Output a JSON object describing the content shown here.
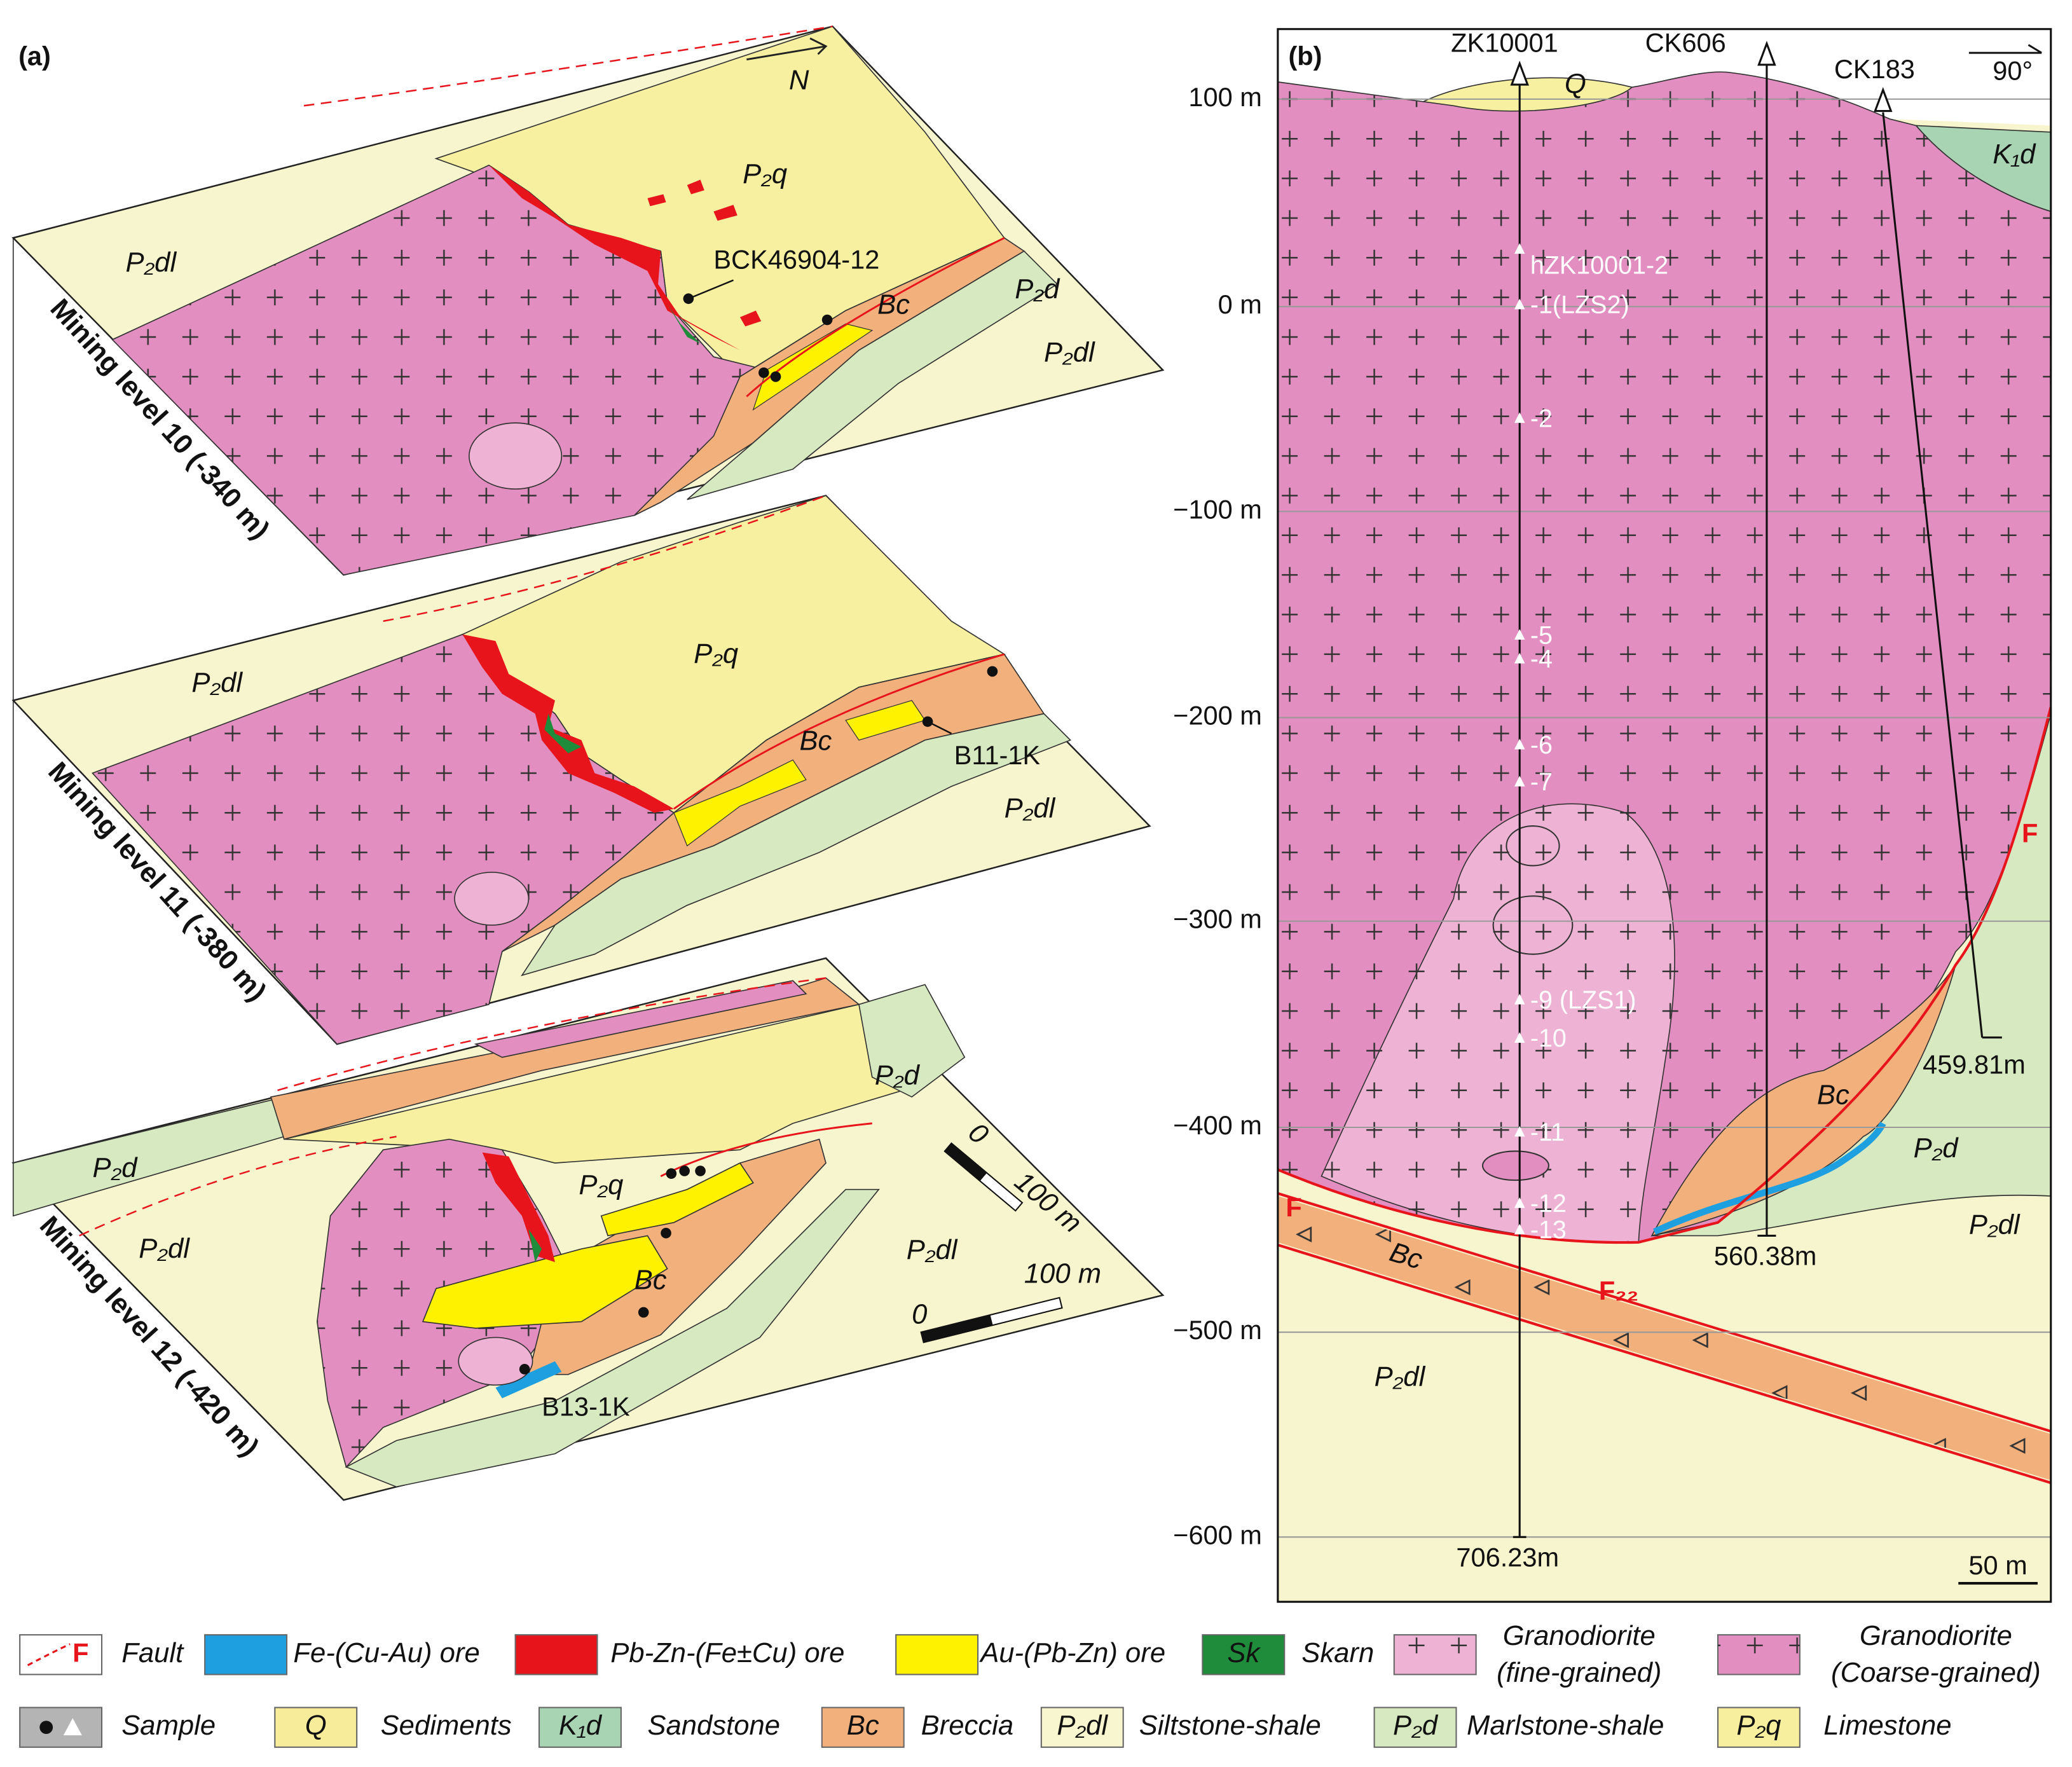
{
  "panel_a": {
    "label": "(a)",
    "north": "N",
    "levels": [
      {
        "name": "Mining level 10 (-340 m)",
        "units": [
          "P₂dl",
          "P₂q",
          "P₂d",
          "P₂dl",
          "Bc"
        ],
        "sample": "BCK46904-12"
      },
      {
        "name": "Mining level 11 (-380 m)",
        "units": [
          "P₂dl",
          "P₂q",
          "Bc",
          "P₂dl"
        ],
        "sample": "B11-1K"
      },
      {
        "name": "Mining level 12 (-420 m)",
        "units": [
          "P₂d",
          "P₂dl",
          "P₂q",
          "Bc",
          "P₂d",
          "P₂dl"
        ],
        "sample": "B13-1K"
      }
    ],
    "scale_bars": [
      {
        "zero": "0",
        "length": "100 m"
      },
      {
        "zero": "0",
        "length": "100 m"
      }
    ]
  },
  "panel_b": {
    "label": "(b)",
    "orientation": "90°",
    "depths": [
      "100 m",
      "0 m",
      "−100 m",
      "−200 m",
      "−300 m",
      "−400 m",
      "−500 m",
      "−600 m"
    ],
    "drillholes": [
      {
        "name": "ZK10001",
        "depth": "706.23m"
      },
      {
        "name": "CK606",
        "depth": "560.38m"
      },
      {
        "name": "CK183",
        "depth": "459.81m"
      }
    ],
    "units": [
      "Q",
      "K₁d",
      "Bc",
      "P₂d",
      "P₂dl",
      "P₂dl"
    ],
    "faults": [
      "F",
      "F",
      "F₂₂"
    ],
    "samples": [
      "hZK10001-2",
      "-1(LZS2)",
      "-2",
      "-5",
      "-4",
      "-6",
      "-7",
      "-9 (LZS1)",
      "-10",
      "-11",
      "-12",
      "-13"
    ],
    "scale_bar": "50 m"
  },
  "legend": [
    {
      "symbol": "F",
      "label": "Fault"
    },
    {
      "label": "Fe-(Cu-Au) ore"
    },
    {
      "label": "Pb-Zn-(Fe±Cu) ore"
    },
    {
      "label": "Au-(Pb-Zn) ore"
    },
    {
      "symbol": "Sk",
      "label": "Skarn"
    },
    {
      "label": [
        "Granodiorite",
        "(fine-grained)"
      ]
    },
    {
      "label": [
        "Granodiorite",
        "(Coarse-grained)"
      ]
    },
    {
      "label": "Sample"
    },
    {
      "symbol": "Q",
      "label": "Sediments"
    },
    {
      "symbol": "K₁d",
      "label": "Sandstone"
    },
    {
      "symbol": "Bc",
      "label": "Breccia"
    },
    {
      "symbol": "P₂dl",
      "label": "Siltstone-shale"
    },
    {
      "symbol": "P₂d",
      "label": "Marlstone-shale"
    },
    {
      "symbol": "P₂q",
      "label": "Limestone"
    }
  ]
}
